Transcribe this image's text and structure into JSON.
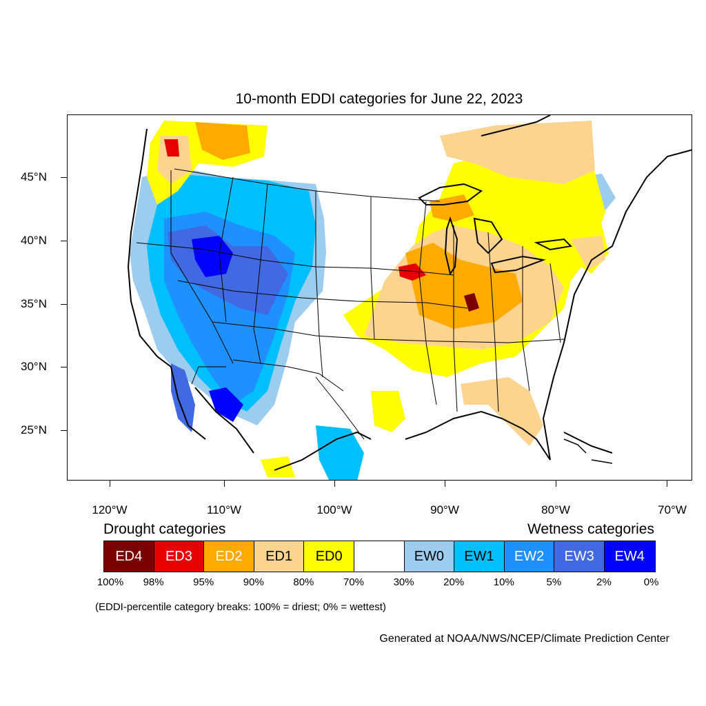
{
  "title": "10-month EDDI categories for June 22, 2023",
  "lat_labels": [
    "45°N",
    "40°N",
    "35°N",
    "30°N",
    "25°N"
  ],
  "lon_labels": [
    "120°W",
    "110°W",
    "100°W",
    "90°W",
    "80°W",
    "70°W"
  ],
  "drought_heading": "Drought categories",
  "wetness_heading": "Wetness categories",
  "legend": [
    {
      "label": "ED4",
      "color": "#7a0000",
      "text_color": "#ffffff"
    },
    {
      "label": "ED3",
      "color": "#e60000",
      "text_color": "#ffffff"
    },
    {
      "label": "ED2",
      "color": "#ffaa00",
      "text_color": "#ffffff"
    },
    {
      "label": "ED1",
      "color": "#fcd38f",
      "text_color": "#000000"
    },
    {
      "label": "ED0",
      "color": "#ffff00",
      "text_color": "#000000"
    },
    {
      "label": "",
      "color": "#ffffff",
      "text_color": "#000000"
    },
    {
      "label": "EW0",
      "color": "#9dcdee",
      "text_color": "#000000"
    },
    {
      "label": "EW1",
      "color": "#00bfff",
      "text_color": "#000000"
    },
    {
      "label": "EW2",
      "color": "#1e90ff",
      "text_color": "#ffffff"
    },
    {
      "label": "EW3",
      "color": "#4169e1",
      "text_color": "#ffffff"
    },
    {
      "label": "EW4",
      "color": "#0000ff",
      "text_color": "#ffffff"
    }
  ],
  "percent_breaks": [
    "100%",
    "98%",
    "95%",
    "90%",
    "80%",
    "70%",
    "30%",
    "20%",
    "10%",
    "5%",
    "2%",
    "0%"
  ],
  "note": "(EDDI-percentile category breaks: 100% = driest; 0% = wettest)",
  "credit": "Generated at NOAA/NWS/NCEP/Climate Prediction Center"
}
